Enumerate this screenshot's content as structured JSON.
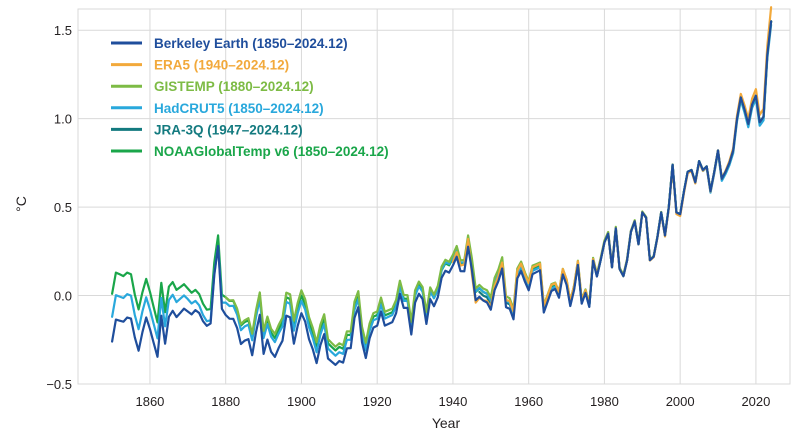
{
  "chart_data": {
    "type": "line",
    "title": "",
    "xlabel": "Year",
    "ylabel": "°C",
    "xlim": [
      1841,
      2029
    ],
    "ylim": [
      -0.5,
      1.62
    ],
    "x_ticks": [
      1860,
      1880,
      1900,
      1920,
      1940,
      1960,
      1980,
      2000,
      2020
    ],
    "x_tick_labels": [
      "1860",
      "1880",
      "1900",
      "1920",
      "1940",
      "1960",
      "1980",
      "2000",
      "2020"
    ],
    "y_ticks": [
      -0.5,
      0.0,
      0.5,
      1.0,
      1.5
    ],
    "y_tick_labels": [
      "−0.5",
      "0.0",
      "0.5",
      "1.0",
      "1.5"
    ],
    "grid": true,
    "legend_position": "top-left",
    "base_anchors": [
      [
        1850,
        -0.16
      ],
      [
        1851,
        -0.04
      ],
      [
        1852,
        -0.05
      ],
      [
        1853,
        -0.06
      ],
      [
        1854,
        -0.04
      ],
      [
        1855,
        -0.05
      ],
      [
        1856,
        -0.16
      ],
      [
        1857,
        -0.24
      ],
      [
        1858,
        -0.14
      ],
      [
        1859,
        -0.06
      ],
      [
        1860,
        -0.13
      ],
      [
        1861,
        -0.21
      ],
      [
        1862,
        -0.29
      ],
      [
        1863,
        -0.06
      ],
      [
        1864,
        -0.22
      ],
      [
        1865,
        -0.07
      ],
      [
        1866,
        -0.04
      ],
      [
        1867,
        -0.08
      ],
      [
        1868,
        -0.06
      ],
      [
        1869,
        -0.04
      ],
      [
        1870,
        -0.06
      ],
      [
        1871,
        -0.08
      ],
      [
        1872,
        -0.06
      ],
      [
        1873,
        -0.08
      ],
      [
        1874,
        -0.13
      ],
      [
        1875,
        -0.16
      ],
      [
        1876,
        -0.15
      ],
      [
        1877,
        0.12
      ],
      [
        1878,
        0.28
      ],
      [
        1879,
        -0.05
      ],
      [
        1880,
        -0.06
      ],
      [
        1881,
        -0.08
      ],
      [
        1882,
        -0.08
      ],
      [
        1883,
        -0.13
      ],
      [
        1884,
        -0.22
      ],
      [
        1885,
        -0.2
      ],
      [
        1886,
        -0.19
      ],
      [
        1887,
        -0.28
      ],
      [
        1888,
        -0.15
      ],
      [
        1889,
        -0.05
      ],
      [
        1890,
        -0.27
      ],
      [
        1891,
        -0.19
      ],
      [
        1892,
        -0.26
      ],
      [
        1893,
        -0.29
      ],
      [
        1894,
        -0.24
      ],
      [
        1895,
        -0.2
      ],
      [
        1896,
        -0.06
      ],
      [
        1897,
        -0.07
      ],
      [
        1898,
        -0.22
      ],
      [
        1899,
        -0.12
      ],
      [
        1900,
        -0.05
      ],
      [
        1901,
        -0.1
      ],
      [
        1902,
        -0.2
      ],
      [
        1903,
        -0.26
      ],
      [
        1904,
        -0.34
      ],
      [
        1905,
        -0.24
      ],
      [
        1906,
        -0.18
      ],
      [
        1907,
        -0.32
      ],
      [
        1908,
        -0.34
      ],
      [
        1909,
        -0.36
      ],
      [
        1910,
        -0.34
      ],
      [
        1911,
        -0.35
      ],
      [
        1912,
        -0.27
      ],
      [
        1913,
        -0.27
      ],
      [
        1914,
        -0.1
      ],
      [
        1915,
        -0.04
      ],
      [
        1916,
        -0.24
      ],
      [
        1917,
        -0.33
      ],
      [
        1918,
        -0.22
      ],
      [
        1919,
        -0.16
      ],
      [
        1920,
        -0.15
      ],
      [
        1921,
        -0.07
      ],
      [
        1922,
        -0.15
      ],
      [
        1923,
        -0.14
      ],
      [
        1924,
        -0.13
      ],
      [
        1925,
        -0.08
      ],
      [
        1926,
        0.03
      ],
      [
        1927,
        -0.05
      ],
      [
        1928,
        -0.05
      ],
      [
        1929,
        -0.2
      ],
      [
        1930,
        -0.02
      ],
      [
        1931,
        0.03
      ],
      [
        1932,
        0.0
      ],
      [
        1933,
        -0.14
      ],
      [
        1934,
        0.0
      ],
      [
        1935,
        -0.04
      ],
      [
        1936,
        0.01
      ],
      [
        1937,
        0.12
      ],
      [
        1938,
        0.16
      ],
      [
        1939,
        0.15
      ],
      [
        1940,
        0.19
      ],
      [
        1941,
        0.24
      ],
      [
        1942,
        0.16
      ],
      [
        1943,
        0.16
      ],
      [
        1944,
        0.3
      ],
      [
        1945,
        0.17
      ],
      [
        1946,
        0.0
      ],
      [
        1947,
        0.02
      ],
      [
        1948,
        0.0
      ],
      [
        1949,
        -0.01
      ],
      [
        1950,
        -0.05
      ],
      [
        1951,
        0.06
      ],
      [
        1952,
        0.11
      ],
      [
        1953,
        0.18
      ],
      [
        1954,
        -0.04
      ],
      [
        1955,
        -0.05
      ],
      [
        1956,
        -0.11
      ],
      [
        1957,
        0.12
      ],
      [
        1958,
        0.16
      ],
      [
        1959,
        0.1
      ],
      [
        1960,
        0.05
      ],
      [
        1961,
        0.14
      ],
      [
        1962,
        0.15
      ],
      [
        1963,
        0.16
      ],
      [
        1964,
        -0.08
      ],
      [
        1965,
        -0.02
      ],
      [
        1966,
        0.04
      ],
      [
        1967,
        0.05
      ],
      [
        1968,
        0.0
      ],
      [
        1969,
        0.13
      ],
      [
        1970,
        0.07
      ],
      [
        1971,
        -0.05
      ],
      [
        1972,
        0.04
      ],
      [
        1973,
        0.18
      ],
      [
        1974,
        -0.04
      ],
      [
        1975,
        0.02
      ],
      [
        1976,
        -0.06
      ],
      [
        1977,
        0.2
      ],
      [
        1978,
        0.11
      ],
      [
        1979,
        0.2
      ],
      [
        1980,
        0.3
      ],
      [
        1981,
        0.35
      ],
      [
        1982,
        0.16
      ],
      [
        1983,
        0.38
      ],
      [
        1984,
        0.15
      ],
      [
        1985,
        0.11
      ],
      [
        1986,
        0.2
      ],
      [
        1987,
        0.36
      ],
      [
        1988,
        0.42
      ],
      [
        1989,
        0.29
      ],
      [
        1990,
        0.47
      ],
      [
        1991,
        0.44
      ],
      [
        1992,
        0.2
      ],
      [
        1993,
        0.22
      ],
      [
        1994,
        0.33
      ],
      [
        1995,
        0.47
      ],
      [
        1996,
        0.34
      ],
      [
        1997,
        0.5
      ],
      [
        1998,
        0.74
      ],
      [
        1999,
        0.47
      ],
      [
        2000,
        0.46
      ],
      [
        2001,
        0.59
      ],
      [
        2002,
        0.7
      ],
      [
        2003,
        0.71
      ],
      [
        2004,
        0.64
      ],
      [
        2005,
        0.76
      ],
      [
        2006,
        0.71
      ],
      [
        2007,
        0.73
      ],
      [
        2008,
        0.59
      ],
      [
        2009,
        0.7
      ],
      [
        2010,
        0.82
      ],
      [
        2011,
        0.66
      ],
      [
        2012,
        0.7
      ],
      [
        2013,
        0.75
      ],
      [
        2014,
        0.82
      ],
      [
        2015,
        1.0
      ],
      [
        2016,
        1.12
      ],
      [
        2017,
        1.05
      ],
      [
        2018,
        0.97
      ],
      [
        2019,
        1.08
      ],
      [
        2020,
        1.13
      ],
      [
        2021,
        0.98
      ],
      [
        2022,
        1.01
      ],
      [
        2023,
        1.36
      ],
      [
        2024,
        1.55
      ]
    ],
    "series": [
      {
        "name": "Berkeley Earth (1850–2024.12)",
        "color": "#1f4e9c",
        "start_year": 1850,
        "end_year": 2024,
        "offsets": [
          [
            1850,
            -0.1
          ],
          [
            1855,
            -0.08
          ],
          [
            1860,
            -0.06
          ],
          [
            1865,
            -0.05
          ],
          [
            1870,
            -0.03
          ],
          [
            1878,
            0.0
          ],
          [
            1880,
            -0.05
          ],
          [
            1890,
            -0.06
          ],
          [
            1900,
            -0.05
          ],
          [
            1910,
            -0.03
          ],
          [
            1920,
            -0.02
          ],
          [
            1930,
            -0.02
          ],
          [
            1940,
            -0.02
          ],
          [
            1950,
            -0.03
          ],
          [
            1960,
            -0.02
          ],
          [
            1970,
            -0.01
          ],
          [
            1980,
            0.0
          ],
          [
            2000,
            0.0
          ],
          [
            2024,
            0.0
          ]
        ]
      },
      {
        "name": "ERA5 (1940–2024.12)",
        "color": "#f2a93b",
        "start_year": 1940,
        "end_year": 2024,
        "offsets": [
          [
            1940,
            0.0
          ],
          [
            1944,
            0.02
          ],
          [
            1945,
            -0.05
          ],
          [
            1946,
            -0.04
          ],
          [
            1955,
            0.02
          ],
          [
            1970,
            0.02
          ],
          [
            1980,
            0.0
          ],
          [
            1990,
            0.0
          ],
          [
            2000,
            -0.01
          ],
          [
            2010,
            0.0
          ],
          [
            2016,
            0.02
          ],
          [
            2023,
            0.05
          ],
          [
            2024,
            0.08
          ]
        ]
      },
      {
        "name": "GISTEMP (1880–2024.12)",
        "color": "#7dbb45",
        "start_year": 1880,
        "end_year": 2024,
        "offsets": [
          [
            1880,
            0.05
          ],
          [
            1890,
            0.07
          ],
          [
            1900,
            0.08
          ],
          [
            1910,
            0.07
          ],
          [
            1920,
            0.06
          ],
          [
            1930,
            0.05
          ],
          [
            1940,
            0.04
          ],
          [
            1950,
            0.04
          ],
          [
            1960,
            0.03
          ],
          [
            1970,
            0.02
          ],
          [
            1980,
            0.01
          ],
          [
            2000,
            0.0
          ],
          [
            2024,
            0.0
          ]
        ]
      },
      {
        "name": "HadCRUT5 (1850–2024.12)",
        "color": "#29a8dc",
        "start_year": 1850,
        "end_year": 2024,
        "offsets": [
          [
            1850,
            0.04
          ],
          [
            1855,
            0.05
          ],
          [
            1860,
            0.05
          ],
          [
            1870,
            0.04
          ],
          [
            1878,
            0.0
          ],
          [
            1880,
            0.02
          ],
          [
            1890,
            0.03
          ],
          [
            1900,
            0.02
          ],
          [
            1910,
            0.02
          ],
          [
            1920,
            0.02
          ],
          [
            1930,
            0.02
          ],
          [
            1940,
            0.03
          ],
          [
            1950,
            0.02
          ],
          [
            1960,
            0.0
          ],
          [
            1980,
            0.0
          ],
          [
            2000,
            0.0
          ],
          [
            2020,
            -0.02
          ],
          [
            2024,
            -0.02
          ]
        ]
      },
      {
        "name": "JRA-3Q (1947–2024.12)",
        "color": "#137a7f",
        "start_year": 1947,
        "end_year": 2024,
        "offsets": [
          [
            1947,
            0.0
          ],
          [
            1960,
            0.0
          ],
          [
            1980,
            0.0
          ],
          [
            2000,
            0.0
          ],
          [
            2024,
            0.0
          ]
        ]
      },
      {
        "name": "NOAAGlobalTemp v6 (1850–2024.12)",
        "color": "#1aa64a",
        "start_year": 1850,
        "end_year": 2024,
        "offsets": [
          [
            1850,
            0.17
          ],
          [
            1855,
            0.17
          ],
          [
            1860,
            0.15
          ],
          [
            1865,
            0.12
          ],
          [
            1870,
            0.1
          ],
          [
            1875,
            0.08
          ],
          [
            1878,
            0.06
          ],
          [
            1880,
            0.05
          ],
          [
            1890,
            0.05
          ],
          [
            1900,
            0.05
          ],
          [
            1910,
            0.05
          ],
          [
            1920,
            0.04
          ],
          [
            1930,
            0.03
          ],
          [
            1940,
            0.02
          ],
          [
            1950,
            0.02
          ],
          [
            1960,
            0.01
          ],
          [
            1980,
            0.0
          ],
          [
            2000,
            0.0
          ],
          [
            2024,
            0.0
          ]
        ]
      }
    ]
  }
}
